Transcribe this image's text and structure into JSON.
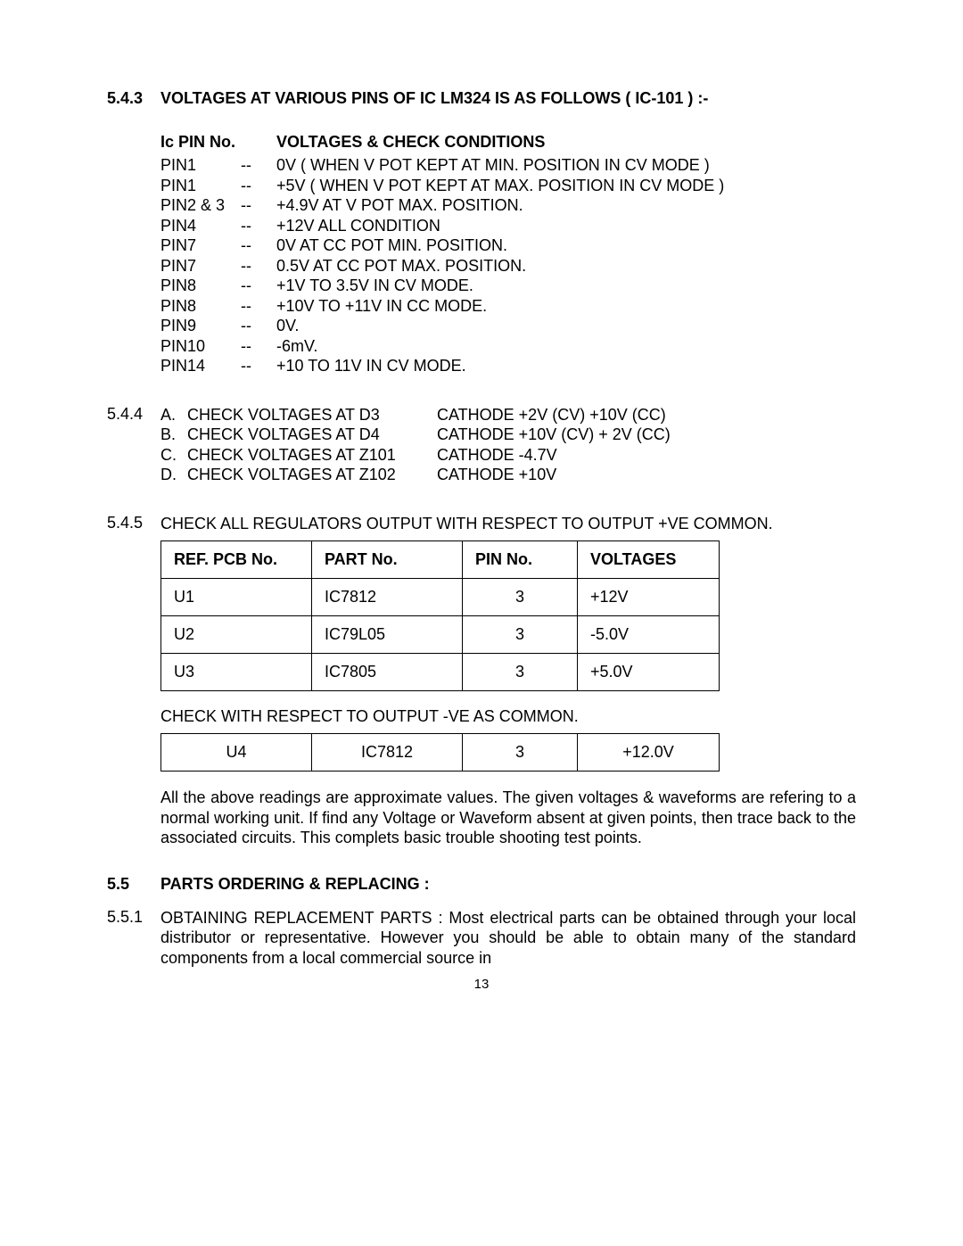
{
  "section543": {
    "num": "5.4.3",
    "title": "VOLTAGES AT VARIOUS PINS OF IC LM324 IS AS FOLLOWS ( IC-101 ) :-",
    "header_col1": "Ic PIN No.",
    "header_col2": "VOLTAGES & CHECK CONDITIONS",
    "rows": [
      {
        "pin": "PIN1",
        "dash": "--",
        "desc": "0V  ( WHEN V POT KEPT AT MIN. POSITION IN CV MODE )"
      },
      {
        "pin": "PIN1",
        "dash": "--",
        "desc": "+5V ( WHEN V POT KEPT AT MAX. POSITION IN CV MODE )"
      },
      {
        "pin": "PIN2 & 3",
        "dash": "--",
        "desc": "+4.9V AT V POT MAX. POSITION."
      },
      {
        "pin": "PIN4",
        "dash": "--",
        "desc": "+12V ALL CONDITION"
      },
      {
        "pin": "PIN7",
        "dash": "--",
        "desc": "0V AT CC POT MIN. POSITION."
      },
      {
        "pin": "PIN7",
        "dash": "--",
        "desc": "0.5V AT CC POT MAX. POSITION."
      },
      {
        "pin": "PIN8",
        "dash": "--",
        "desc": "+1V TO 3.5V IN CV MODE."
      },
      {
        "pin": "PIN8",
        "dash": "--",
        "desc": "+10V TO +11V IN CC MODE."
      },
      {
        "pin": "PIN9",
        "dash": "--",
        "desc": "0V."
      },
      {
        "pin": "PIN10",
        "dash": "--",
        "desc": "-6mV."
      },
      {
        "pin": "PIN14",
        "dash": "--",
        "desc": "+10 TO 11V IN CV MODE."
      }
    ]
  },
  "section544": {
    "num": "5.4.4",
    "rows": [
      {
        "letter": "A.",
        "text": "CHECK VOLTAGES AT D3",
        "result": "CATHODE +2V (CV) +10V (CC)"
      },
      {
        "letter": "B.",
        "text": "CHECK VOLTAGES AT D4",
        "result": "CATHODE +10V (CV) + 2V (CC)"
      },
      {
        "letter": "C.",
        "text": "CHECK VOLTAGES AT Z101",
        "result": "CATHODE -4.7V"
      },
      {
        "letter": "D.",
        "text": "CHECK VOLTAGES AT Z102",
        "result": "CATHODE +10V"
      }
    ]
  },
  "section545": {
    "num": "5.4.5",
    "intro": "CHECK  ALL  REGULATORS  OUTPUT WITH RESPECT TO OUTPUT +VE COMMON.",
    "table1": {
      "headers": [
        "REF. PCB No.",
        "PART No.",
        "PIN No.",
        "VOLTAGES"
      ],
      "rows": [
        [
          "U1",
          "IC7812",
          "3",
          "+12V"
        ],
        [
          "U2",
          "IC79L05",
          "3",
          "-5.0V"
        ],
        [
          "U3",
          "IC7805",
          "3",
          "+5.0V"
        ]
      ]
    },
    "mid_text": "CHECK WITH RESPECT TO OUTPUT -VE AS COMMON.",
    "table2": {
      "rows": [
        [
          "U4",
          "IC7812",
          "3",
          "+12.0V"
        ]
      ]
    },
    "para": "All the above readings are approximate values. The given voltages & waveforms are refering to a normal working unit. If find any Voltage or Waveform absent at given points, then trace back to the associated circuits.  This complets basic trouble shooting test points."
  },
  "section55": {
    "num": "5.5",
    "title": "PARTS ORDERING & REPLACING :"
  },
  "section551": {
    "num": "5.5.1",
    "text": "OBTAINING REPLACEMENT PARTS :   Most electrical parts can be obtained through your local distributor or representative. However you should be able to obtain many  of the standard components from a  local commercial source in"
  },
  "page": "13"
}
